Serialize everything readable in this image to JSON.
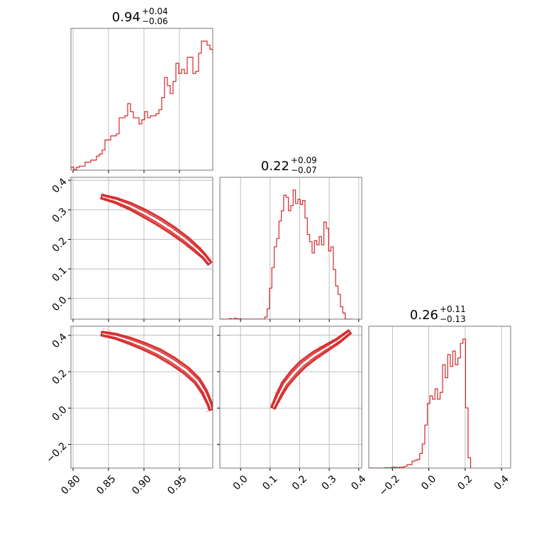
{
  "chart_data": {
    "type": "corner",
    "colors": {
      "line": "#d62728",
      "grid": "#b0b0b0",
      "frame": "#000000",
      "scatter": "#f3b3b6"
    },
    "grid": true,
    "params": [
      {
        "title": {
          "median": "0.94",
          "plus": "+0.04",
          "minus": "−0.06"
        },
        "range": [
          0.797,
          0.997
        ],
        "ticks": [
          {
            "v": 0.8,
            "label": "0.80"
          },
          {
            "v": 0.85,
            "label": "0.85"
          },
          {
            "v": 0.9,
            "label": "0.90"
          },
          {
            "v": 0.95,
            "label": "0.95"
          }
        ]
      },
      {
        "title": {
          "median": "0.22",
          "plus": "+0.09",
          "minus": "−0.07"
        },
        "range": [
          -0.07,
          0.41
        ],
        "ticks": [
          {
            "v": 0.0,
            "label": "0.0"
          },
          {
            "v": 0.1,
            "label": "0.1"
          },
          {
            "v": 0.2,
            "label": "0.2"
          },
          {
            "v": 0.3,
            "label": "0.3"
          },
          {
            "v": 0.4,
            "label": "0.4"
          }
        ]
      },
      {
        "title": {
          "median": "0.26",
          "plus": "+0.11",
          "minus": "−0.13"
        },
        "range": [
          -0.33,
          0.45
        ],
        "ticks": [
          {
            "v": -0.2,
            "label": "−0.2"
          },
          {
            "v": 0.0,
            "label": "0.0"
          },
          {
            "v": 0.2,
            "label": "0.2"
          },
          {
            "v": 0.4,
            "label": "0.4"
          }
        ]
      }
    ],
    "hist": [
      {
        "bin_start": 0.797,
        "bin_width": 0.004,
        "counts": [
          1.5,
          0.3,
          1.5,
          2,
          2,
          4,
          4,
          5,
          5,
          7,
          8,
          10,
          15,
          15,
          17,
          17,
          18,
          26,
          26,
          27,
          33,
          29,
          26,
          26,
          23,
          25,
          29,
          26,
          27,
          27,
          28,
          30,
          36,
          46,
          42,
          38,
          44,
          53,
          48,
          50,
          48,
          56,
          56,
          48,
          49,
          58,
          64,
          64,
          62,
          60,
          58,
          55,
          51,
          5
        ]
      },
      {
        "bin_start": -0.07,
        "bin_width": 0.008,
        "counts": [
          0,
          0,
          0,
          0,
          0.5,
          0,
          1,
          0.4,
          0.4,
          0,
          0,
          0,
          0,
          0,
          0,
          0,
          0,
          0,
          0,
          2,
          10,
          30,
          50,
          70,
          78,
          95,
          105,
          120,
          118,
          105,
          110,
          125,
          112,
          116,
          111,
          115,
          98,
          82,
          75,
          64,
          76,
          72,
          80,
          72,
          94,
          88,
          66,
          70,
          48,
          32,
          24,
          12,
          6,
          0,
          0,
          0
        ]
      },
      {
        "bin_start": -0.33,
        "bin_width": 0.014,
        "counts": [
          0,
          0,
          0,
          0,
          0,
          0,
          0.3,
          0.3,
          0.3,
          1,
          1,
          0.5,
          1,
          1,
          2,
          4,
          4,
          8,
          9,
          10,
          17,
          28,
          50,
          75,
          84,
          80,
          92,
          80,
          88,
          120,
          105,
          132,
          118,
          136,
          120,
          128,
          145,
          150,
          70,
          12
        ]
      }
    ],
    "pairs": [
      {
        "x_param": 0,
        "y_param": 1,
        "ridge": [
          [
            0.84,
            0.345
          ],
          [
            0.86,
            0.332
          ],
          [
            0.88,
            0.313
          ],
          [
            0.9,
            0.289
          ],
          [
            0.92,
            0.262
          ],
          [
            0.94,
            0.231
          ],
          [
            0.96,
            0.196
          ],
          [
            0.975,
            0.165
          ],
          [
            0.985,
            0.142
          ],
          [
            0.993,
            0.118
          ]
        ],
        "half_width_fraction": [
          0.42,
          0.75,
          1.0
        ]
      },
      {
        "x_param": 0,
        "y_param": 2,
        "ridge": [
          [
            0.84,
            0.41
          ],
          [
            0.86,
            0.395
          ],
          [
            0.88,
            0.37
          ],
          [
            0.9,
            0.34
          ],
          [
            0.92,
            0.305
          ],
          [
            0.94,
            0.26
          ],
          [
            0.96,
            0.205
          ],
          [
            0.975,
            0.15
          ],
          [
            0.985,
            0.09
          ],
          [
            0.993,
            0.02
          ],
          [
            0.995,
            -0.01
          ]
        ],
        "half_width_fraction": [
          0.42,
          0.75,
          1.0
        ]
      },
      {
        "x_param": 1,
        "y_param": 2,
        "ridge": [
          [
            0.11,
            0.0
          ],
          [
            0.13,
            0.07
          ],
          [
            0.15,
            0.13
          ],
          [
            0.18,
            0.19
          ],
          [
            0.21,
            0.24
          ],
          [
            0.25,
            0.29
          ],
          [
            0.29,
            0.33
          ],
          [
            0.33,
            0.37
          ],
          [
            0.37,
            0.42
          ]
        ],
        "half_width_fraction": [
          0.42,
          0.75,
          1.0
        ]
      }
    ]
  }
}
